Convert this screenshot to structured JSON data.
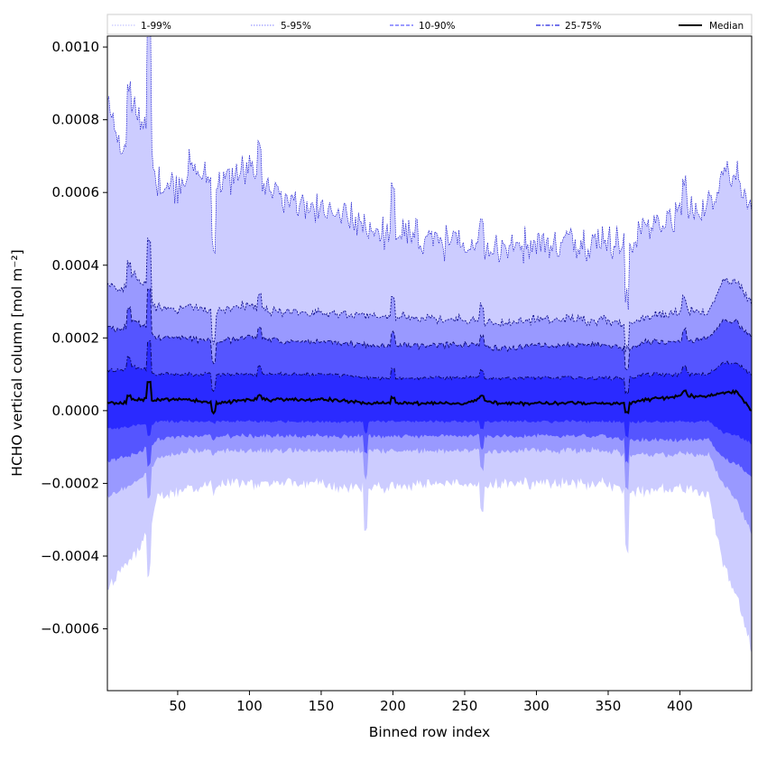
{
  "chart_data": {
    "type": "area",
    "title": "",
    "xlabel": "Binned row index",
    "ylabel": "HCHO vertical column [mol m⁻²]",
    "xlim": [
      1,
      450
    ],
    "ylim": [
      -0.00077,
      0.00103
    ],
    "xticks": [
      50,
      100,
      150,
      200,
      250,
      300,
      350,
      400
    ],
    "xtick_labels": [
      "50",
      "100",
      "150",
      "200",
      "250",
      "300",
      "350",
      "400"
    ],
    "yticks": [
      -0.0006,
      -0.0004,
      -0.0002,
      0.0,
      0.0002,
      0.0004,
      0.0006,
      0.0008,
      0.001
    ],
    "ytick_labels": [
      "−0.0006",
      "−0.0004",
      "−0.0002",
      "0.0000",
      "0.0002",
      "0.0004",
      "0.0006",
      "0.0008",
      "0.0010"
    ],
    "legend_position": "top (above plot, horizontal)",
    "legend": [
      {
        "label": "1-99%",
        "color": "#c8c8ff",
        "style": "dotted"
      },
      {
        "label": "5-95%",
        "color": "#9a9aff",
        "style": "dotted"
      },
      {
        "label": "10-90%",
        "color": "#6060ff",
        "style": "dashed"
      },
      {
        "label": "25-75%",
        "color": "#2020e0",
        "style": "dashdot"
      },
      {
        "label": "Median",
        "color": "#000000",
        "style": "solid"
      }
    ],
    "band_colors": {
      "p1_99": "#ccccff",
      "p5_95": "#9999ff",
      "p10_90": "#5555ff",
      "p25_75": "#2a2aff"
    },
    "x_knots": [
      1,
      10,
      20,
      30,
      35,
      50,
      60,
      75,
      100,
      107,
      125,
      150,
      160,
      180,
      200,
      225,
      250,
      260,
      275,
      300,
      325,
      350,
      363,
      375,
      400,
      420,
      430,
      440,
      450
    ],
    "series_knots": {
      "p99": [
        0.00087,
        0.0007,
        0.00082,
        0.00078,
        0.00062,
        0.00062,
        0.00068,
        0.00062,
        0.00066,
        0.00064,
        0.00058,
        0.00054,
        0.00055,
        0.0005,
        0.00049,
        0.00047,
        0.00045,
        0.00046,
        0.00045,
        0.00046,
        0.00046,
        0.00047,
        0.00046,
        0.00051,
        0.00054,
        0.00056,
        0.00066,
        0.00064,
        0.00055
      ],
      "p95": [
        0.00034,
        0.00033,
        0.00037,
        0.00033,
        0.00028,
        0.00028,
        0.00029,
        0.00027,
        0.00029,
        0.00028,
        0.00027,
        0.00027,
        0.00027,
        0.00026,
        0.00026,
        0.00025,
        0.00025,
        0.00025,
        0.00024,
        0.00025,
        0.00025,
        0.00025,
        0.00024,
        0.00026,
        0.00027,
        0.00027,
        0.00036,
        0.00035,
        0.0003
      ],
      "p90": [
        0.00023,
        0.00022,
        0.00025,
        0.00022,
        0.0002,
        0.0002,
        0.0002,
        0.00019,
        0.0002,
        0.0002,
        0.00019,
        0.00019,
        0.00019,
        0.00018,
        0.00018,
        0.00018,
        0.00018,
        0.00018,
        0.00017,
        0.00018,
        0.00018,
        0.00018,
        0.00017,
        0.00019,
        0.00019,
        0.0002,
        0.00025,
        0.00024,
        0.0002
      ],
      "p75": [
        0.00011,
        0.00011,
        0.00012,
        0.00011,
        0.0001,
        0.0001,
        0.0001,
        0.0001,
        0.0001,
        0.0001,
        0.0001,
        0.0001,
        0.0001,
        9e-05,
        9e-05,
        9e-05,
        9e-05,
        9e-05,
        9e-05,
        9e-05,
        9e-05,
        9e-05,
        9e-05,
        0.0001,
        0.0001,
        0.0001,
        0.00013,
        0.00013,
        0.0001
      ],
      "p50": [
        2e-05,
        2e-05,
        3e-05,
        3e-05,
        3e-05,
        3e-05,
        3e-05,
        2e-05,
        3e-05,
        3e-05,
        3e-05,
        3e-05,
        3e-05,
        2e-05,
        2e-05,
        2e-05,
        2e-05,
        3e-05,
        2e-05,
        2e-05,
        2e-05,
        2e-05,
        2e-05,
        3e-05,
        4e-05,
        4e-05,
        5e-05,
        5e-05,
        0.0
      ],
      "p25": [
        -5e-05,
        -5e-05,
        -4e-05,
        -4e-05,
        -3e-05,
        -3e-05,
        -3e-05,
        -3e-05,
        -3e-05,
        -3e-05,
        -3e-05,
        -3e-05,
        -3e-05,
        -3e-05,
        -3e-05,
        -3e-05,
        -3e-05,
        -3e-05,
        -3e-05,
        -3e-05,
        -3e-05,
        -3e-05,
        -3e-05,
        -3e-05,
        -3e-05,
        -3e-05,
        -6e-05,
        -7e-05,
        -9e-05
      ],
      "p10": [
        -0.00014,
        -0.00013,
        -0.00012,
        -0.0001,
        -8e-05,
        -7e-05,
        -7e-05,
        -7e-05,
        -7e-05,
        -7e-05,
        -7e-05,
        -7e-05,
        -7e-05,
        -7e-05,
        -7e-05,
        -7e-05,
        -7e-05,
        -7e-05,
        -7e-05,
        -7e-05,
        -7e-05,
        -7e-05,
        -8e-05,
        -8e-05,
        -8e-05,
        -8e-05,
        -0.00013,
        -0.00015,
        -0.00018
      ],
      "p5": [
        -0.00024,
        -0.00022,
        -0.0002,
        -0.00017,
        -0.00013,
        -0.00012,
        -0.00011,
        -0.00011,
        -0.00011,
        -0.00011,
        -0.00011,
        -0.00011,
        -0.00011,
        -0.00011,
        -0.00011,
        -0.00011,
        -0.00011,
        -0.00011,
        -0.00011,
        -0.00011,
        -0.00011,
        -0.00011,
        -0.00012,
        -0.00012,
        -0.00012,
        -0.00012,
        -0.0002,
        -0.00025,
        -0.00034
      ],
      "p1": [
        -0.0005,
        -0.00044,
        -0.0004,
        -0.00033,
        -0.00024,
        -0.00022,
        -0.00021,
        -0.0002,
        -0.0002,
        -0.0002,
        -0.0002,
        -0.0002,
        -0.00021,
        -0.00021,
        -0.00021,
        -0.0002,
        -0.0002,
        -0.0002,
        -0.0002,
        -0.0002,
        -0.0002,
        -0.0002,
        -0.00022,
        -0.00022,
        -0.00021,
        -0.00023,
        -0.00042,
        -0.00052,
        -0.00066
      ]
    },
    "noise_amplitude": {
      "p99": 4e-05,
      "p95": 1.2e-05,
      "p90": 8e-06,
      "p75": 5e-06,
      "p50": 4e-06,
      "p25": 4e-06,
      "p10": 6e-06,
      "p5": 8e-06,
      "p1": 1.5e-05
    },
    "spikes": [
      {
        "x": 16,
        "dy_upper": 0.00012,
        "dy_lower": 0.0
      },
      {
        "x": 30,
        "dy_upper": 0.00032,
        "dy_lower": -0.00012
      },
      {
        "x": 75,
        "dy_upper": -0.00016,
        "dy_lower": -2e-05
      },
      {
        "x": 107,
        "dy_upper": 8e-05,
        "dy_lower": 0.0
      },
      {
        "x": 181,
        "dy_upper": 0.0,
        "dy_lower": -0.00012
      },
      {
        "x": 200,
        "dy_upper": 0.0001,
        "dy_lower": 0.0
      },
      {
        "x": 262,
        "dy_upper": 8e-05,
        "dy_lower": -8e-05
      },
      {
        "x": 363,
        "dy_upper": -0.00016,
        "dy_lower": -0.00016
      },
      {
        "x": 403,
        "dy_upper": 0.0001,
        "dy_lower": 0.0
      }
    ]
  }
}
